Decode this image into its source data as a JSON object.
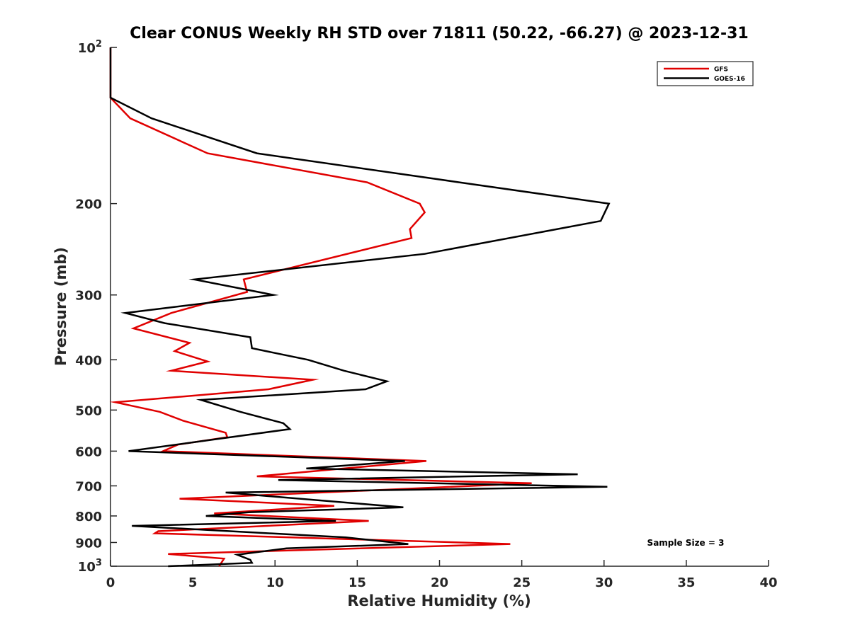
{
  "chart_data": {
    "type": "line",
    "title": "Clear CONUS Weekly RH STD over 71811 (50.22, -66.27) @ 2023-12-31",
    "xlabel": "Relative Humidity (%)",
    "ylabel": "Pressure (mb)",
    "xlim": [
      0,
      40
    ],
    "ylim": [
      100,
      1000
    ],
    "y_scale": "log",
    "y_reversed": true,
    "x_ticks": [
      "0",
      "5",
      "10",
      "15",
      "20",
      "25",
      "30",
      "35",
      "40"
    ],
    "y_ticks": [
      {
        "value": 100,
        "base": "10",
        "exp": "2"
      },
      {
        "value": 200,
        "label": "200"
      },
      {
        "value": 300,
        "label": "300"
      },
      {
        "value": 400,
        "label": "400"
      },
      {
        "value": 500,
        "label": "500"
      },
      {
        "value": 600,
        "label": "600"
      },
      {
        "value": 700,
        "label": "700"
      },
      {
        "value": 800,
        "label": "800"
      },
      {
        "value": 900,
        "label": "900"
      },
      {
        "value": 1000,
        "base": "10",
        "exp": "3"
      }
    ],
    "legend_position": "top-right",
    "annotation": "Sample Size = 3",
    "series": [
      {
        "name": "GFS",
        "color": "#e00000",
        "points": [
          [
            0,
            100
          ],
          [
            0,
            125
          ],
          [
            1.2,
            137
          ],
          [
            5.9,
            160
          ],
          [
            15.6,
            182
          ],
          [
            18.8,
            200
          ],
          [
            19.1,
            208
          ],
          [
            18.2,
            224
          ],
          [
            18.3,
            233
          ],
          [
            8.1,
            280
          ],
          [
            8.3,
            296
          ],
          [
            3.7,
            325
          ],
          [
            1.4,
            348
          ],
          [
            4.8,
            371
          ],
          [
            3.9,
            385
          ],
          [
            5.9,
            403
          ],
          [
            3.7,
            420
          ],
          [
            12.3,
            437
          ],
          [
            9.6,
            456
          ],
          [
            0.3,
            483
          ],
          [
            3.0,
            504
          ],
          [
            4.4,
            524
          ],
          [
            7.0,
            553
          ],
          [
            7.1,
            564
          ],
          [
            4.1,
            583
          ],
          [
            3.2,
            600
          ],
          [
            19.2,
            627
          ],
          [
            8.9,
            671
          ],
          [
            25.6,
            692
          ],
          [
            4.2,
            741
          ],
          [
            13.6,
            765
          ],
          [
            6.3,
            791
          ],
          [
            15.7,
            818
          ],
          [
            2.9,
            856
          ],
          [
            2.7,
            864
          ],
          [
            24.3,
            906
          ],
          [
            3.5,
            947
          ],
          [
            6.9,
            967
          ],
          [
            6.6,
            1000
          ]
        ]
      },
      {
        "name": "GOES-16",
        "color": "#000000",
        "points": [
          [
            0,
            100
          ],
          [
            0,
            125
          ],
          [
            2.5,
            137
          ],
          [
            8.9,
            160
          ],
          [
            21.2,
            182
          ],
          [
            30.3,
            200
          ],
          [
            29.8,
            216
          ],
          [
            19.1,
            250
          ],
          [
            5.1,
            280
          ],
          [
            9.9,
            300
          ],
          [
            0.9,
            325
          ],
          [
            3.3,
            340
          ],
          [
            8.5,
            362
          ],
          [
            8.6,
            380
          ],
          [
            12.0,
            400
          ],
          [
            14.2,
            420
          ],
          [
            16.8,
            440
          ],
          [
            15.5,
            456
          ],
          [
            5.5,
            478
          ],
          [
            7.9,
            504
          ],
          [
            10.5,
            530
          ],
          [
            10.9,
            544
          ],
          [
            1.1,
            600
          ],
          [
            17.9,
            627
          ],
          [
            11.9,
            648
          ],
          [
            28.4,
            665
          ],
          [
            10.2,
            682
          ],
          [
            30.2,
            703
          ],
          [
            7.0,
            721
          ],
          [
            17.8,
            770
          ],
          [
            8.4,
            787
          ],
          [
            5.8,
            800
          ],
          [
            13.7,
            818
          ],
          [
            1.3,
            836
          ],
          [
            14.3,
            880
          ],
          [
            18.1,
            906
          ],
          [
            10.7,
            924
          ],
          [
            7.7,
            950
          ],
          [
            8.5,
            972
          ],
          [
            8.6,
            985
          ],
          [
            3.5,
            1000
          ]
        ]
      }
    ]
  }
}
